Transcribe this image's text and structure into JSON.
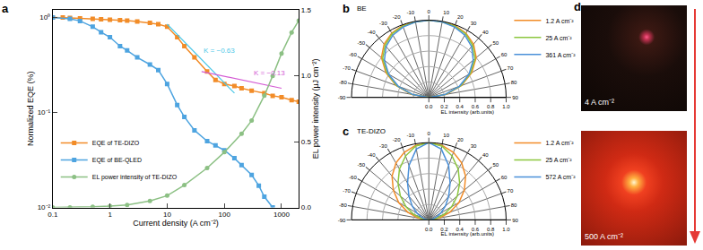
{
  "chart_data": [
    {
      "type": "line",
      "label": "a",
      "x_label": "Current density (A cm⁻²)",
      "y_label": "Normalized EQE (%)",
      "y2_label": "EL power intensity (μJ cm⁻²)",
      "log": true,
      "legend": "lower left",
      "xlim": [
        0.1,
        2000
      ],
      "xticks": [
        0.1,
        1,
        10,
        100,
        1000
      ],
      "ylim": [
        0.01,
        1.2
      ],
      "yticks": [
        {
          "value": 0.01,
          "label": "10⁻²"
        },
        {
          "value": 0.1,
          "label": "10⁻¹"
        },
        {
          "value": 1,
          "label": "10⁰"
        }
      ],
      "y2lim": [
        0,
        1.5
      ],
      "y2ticks": [
        {
          "value": 0,
          "label": "0.0"
        },
        0.5,
        {
          "value": 1,
          "label": "1.0"
        },
        1.5
      ],
      "series": [
        {
          "name": "EQE of TE-DIZO",
          "color": "#f28c28",
          "marker": "square",
          "line_style": "solid",
          "x": [
            0.1,
            0.15,
            0.2,
            0.3,
            0.5,
            0.7,
            1,
            1.5,
            2,
            3,
            5,
            7,
            10,
            15,
            20,
            30,
            50,
            70,
            100,
            150,
            200,
            300,
            500,
            700,
            1000,
            1500,
            2000
          ],
          "values": [
            1,
            1,
            0.99,
            0.98,
            0.97,
            0.96,
            0.95,
            0.94,
            0.93,
            0.91,
            0.88,
            0.85,
            0.8,
            0.62,
            0.5,
            0.38,
            0.27,
            0.22,
            0.2,
            0.19,
            0.18,
            0.17,
            0.16,
            0.15,
            0.145,
            0.135,
            0.13
          ]
        },
        {
          "name": "EQE of BE-QLED",
          "color": "#4ea4e0",
          "marker": "square",
          "line_style": "solid",
          "x": [
            0.1,
            0.2,
            0.3,
            0.5,
            0.7,
            1,
            1.5,
            2,
            3,
            5,
            7,
            10,
            15,
            20,
            30,
            50,
            70,
            100,
            150,
            200,
            300,
            400,
            500,
            700
          ],
          "values": [
            1,
            0.97,
            0.92,
            0.8,
            0.7,
            0.62,
            0.5,
            0.45,
            0.38,
            0.32,
            0.28,
            0.2,
            0.12,
            0.09,
            0.065,
            0.05,
            0.045,
            0.04,
            0.033,
            0.028,
            0.022,
            0.017,
            0.013,
            0.01
          ]
        },
        {
          "name": "EL power intensity of TE-DIZO",
          "color": "#8cc084",
          "marker": "circle",
          "line_style": "solid",
          "axis": "y2",
          "x": [
            0.1,
            0.2,
            0.5,
            1,
            2,
            5,
            10,
            20,
            50,
            100,
            200,
            300,
            500,
            700,
            1000,
            1500,
            2000
          ],
          "values": [
            0,
            0,
            0.005,
            0.01,
            0.02,
            0.05,
            0.09,
            0.17,
            0.3,
            0.42,
            0.56,
            0.66,
            0.85,
            1.0,
            1.17,
            1.33,
            1.42
          ]
        },
        {
          "color": "#4ec8e8",
          "line_style": "solid",
          "x": [
            10,
            150
          ],
          "values": [
            0.85,
            0.16
          ]
        },
        {
          "color": "#d45cd4",
          "line_style": "solid",
          "x": [
            40,
            1000
          ],
          "values": [
            0.27,
            0.18
          ]
        }
      ],
      "annotations": [
        {
          "text": "K = −0.63",
          "x": 40,
          "y": 0.45,
          "color": "#4ec8e8"
        },
        {
          "text": "K = −0.13",
          "x": 300,
          "y": 0.26,
          "color": "#d45cd4"
        }
      ]
    },
    {
      "type": "polar",
      "label": "b",
      "title": "BE",
      "r_label": "EL intensity (arb.units)",
      "legend": "upper right",
      "thetaticks": [
        -90,
        -80,
        -70,
        -60,
        -50,
        -40,
        -30,
        -20,
        -10,
        0,
        10,
        20,
        30,
        40,
        50,
        60,
        70,
        80,
        90
      ],
      "rlim": [
        0,
        1
      ],
      "rticks": [
        {
          "value": 0,
          "label": "0.0"
        },
        0.2,
        0.4,
        0.6,
        0.8,
        {
          "value": 1,
          "label": "1.0"
        }
      ],
      "theta": [
        -90,
        -80,
        -70,
        -60,
        -50,
        -40,
        -30,
        -20,
        -10,
        0,
        10,
        20,
        30,
        40,
        50,
        60,
        70,
        80,
        90
      ],
      "series": [
        {
          "name": "1.2 A cm⁻²",
          "color": "#f28c28",
          "values": [
            0,
            0.23,
            0.45,
            0.64,
            0.8,
            0.9,
            0.96,
            0.99,
            1,
            1,
            1,
            0.99,
            0.96,
            0.9,
            0.8,
            0.64,
            0.45,
            0.23,
            0
          ]
        },
        {
          "name": "25 A cm⁻²",
          "color": "#8cc63f",
          "values": [
            0,
            0.22,
            0.44,
            0.62,
            0.78,
            0.88,
            0.95,
            0.98,
            0.99,
            1,
            0.99,
            0.98,
            0.95,
            0.88,
            0.78,
            0.62,
            0.44,
            0.22,
            0
          ]
        },
        {
          "name": "361 A cm⁻²",
          "color": "#4a90d9",
          "values": [
            0,
            0.21,
            0.42,
            0.6,
            0.75,
            0.86,
            0.93,
            0.97,
            0.99,
            1,
            0.99,
            0.97,
            0.93,
            0.86,
            0.75,
            0.6,
            0.42,
            0.21,
            0
          ]
        }
      ]
    },
    {
      "type": "polar",
      "label": "c",
      "title": "TE-DIZO",
      "r_label": "EL intensity (arb.units)",
      "legend": "upper right",
      "thetaticks": [
        -90,
        -80,
        -70,
        -60,
        -50,
        -40,
        -30,
        -20,
        -10,
        0,
        10,
        20,
        30,
        40,
        50,
        60,
        70,
        80,
        90
      ],
      "rlim": [
        0,
        1
      ],
      "rticks": [
        {
          "value": 0,
          "label": "0.0"
        },
        0.2,
        0.4,
        0.6,
        0.8,
        {
          "value": 1,
          "label": "1.0"
        }
      ],
      "theta": [
        -90,
        -80,
        -70,
        -60,
        -50,
        -40,
        -30,
        -20,
        -10,
        0,
        10,
        20,
        30,
        40,
        50,
        60,
        70,
        80,
        90
      ],
      "series": [
        {
          "name": "1.2 A cm⁻²",
          "color": "#f28c28",
          "values": [
            0,
            0.14,
            0.29,
            0.45,
            0.6,
            0.74,
            0.85,
            0.93,
            0.98,
            1,
            0.98,
            0.93,
            0.85,
            0.74,
            0.6,
            0.45,
            0.29,
            0.14,
            0
          ]
        },
        {
          "name": "25 A cm⁻²",
          "color": "#8cc63f",
          "values": [
            0,
            0.1,
            0.21,
            0.34,
            0.48,
            0.62,
            0.76,
            0.88,
            0.97,
            1,
            0.97,
            0.88,
            0.76,
            0.62,
            0.48,
            0.34,
            0.21,
            0.1,
            0
          ]
        },
        {
          "name": "572 A cm⁻²",
          "color": "#4a90d9",
          "values": [
            0,
            0.05,
            0.1,
            0.18,
            0.28,
            0.4,
            0.55,
            0.75,
            0.93,
            1,
            0.93,
            0.75,
            0.55,
            0.4,
            0.28,
            0.18,
            0.1,
            0.05,
            0
          ]
        }
      ]
    }
  ],
  "photos": {
    "label": "d",
    "captions": [
      "4 A cm⁻²",
      "500 A cm⁻²"
    ]
  }
}
